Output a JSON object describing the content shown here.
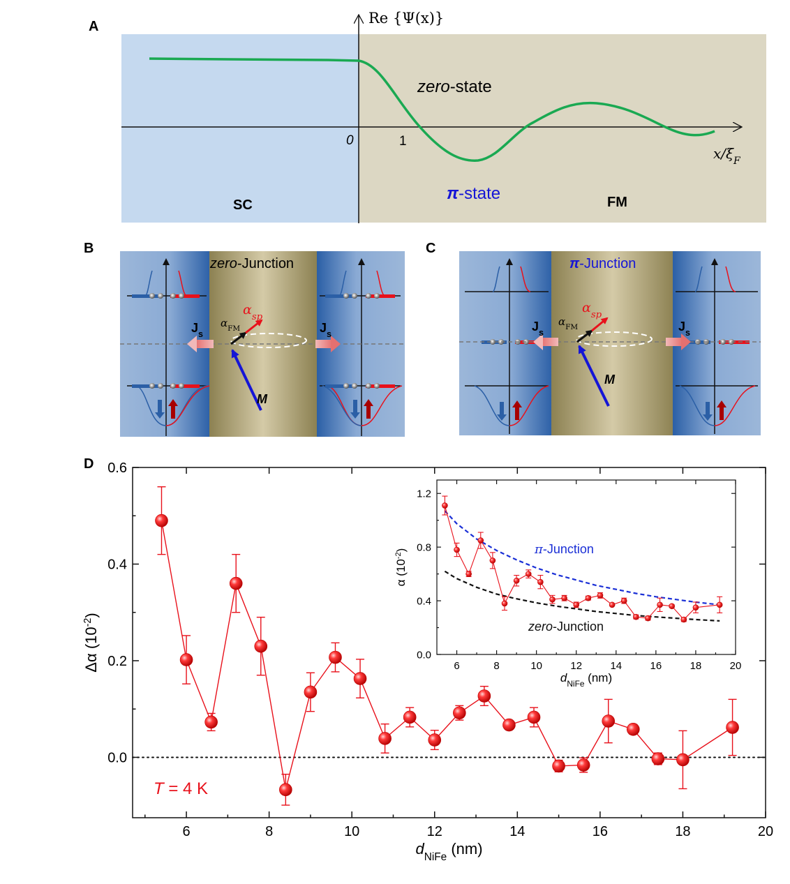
{
  "panels": {
    "A": {
      "letter": "A",
      "y_axis_label": "Re {Ψ(x)}",
      "x_axis_label": "x/ξ_F",
      "origin_label": "0",
      "one_label": "1",
      "zero_state": "zero-state",
      "pi_state": "π-state",
      "sc_label": "SC",
      "fm_label": "FM",
      "colors": {
        "sc": "#c5d9ef",
        "fm": "#dcd7c3",
        "curve": "#1aa952",
        "pi": "#1515d6"
      }
    },
    "B": {
      "letter": "B",
      "title": "zero-Junction",
      "alpha_sp": "αsp",
      "alpha_fm": "αFM",
      "js": "Js",
      "m": "M"
    },
    "C": {
      "letter": "C",
      "title": "π-Junction",
      "alpha_sp": "αsp",
      "alpha_fm": "αFM",
      "js": "Js",
      "m": "M"
    },
    "D": {
      "letter": "D",
      "annotation": "T = 4 K"
    }
  },
  "chart_data": [
    {
      "type": "scatter",
      "panel": "D-main",
      "xlabel": "dNiFe (nm)",
      "ylabel": "Δα (10-2)",
      "xlim": [
        4.7,
        20
      ],
      "ylim": [
        -0.125,
        0.6
      ],
      "xticks": [
        6,
        8,
        10,
        12,
        14,
        16,
        18,
        20
      ],
      "yticks": [
        0.0,
        0.2,
        0.4,
        0.6
      ],
      "tick_labels_x": [
        "6",
        "8",
        "10",
        "12",
        "14",
        "16",
        "18",
        "20"
      ],
      "tick_labels_y": [
        "0.0",
        "0.2",
        "0.4",
        "0.6"
      ],
      "series": [
        {
          "color": "#e8111b",
          "x": [
            5.4,
            6.0,
            6.6,
            7.2,
            7.8,
            8.4,
            9.0,
            9.6,
            10.2,
            10.8,
            11.4,
            12.0,
            12.6,
            13.2,
            13.8,
            14.4,
            15.0,
            15.6,
            16.2,
            16.8,
            17.4,
            18.0,
            19.2
          ],
          "y": [
            0.49,
            0.202,
            0.073,
            0.36,
            0.23,
            -0.067,
            0.135,
            0.207,
            0.163,
            0.039,
            0.083,
            0.036,
            0.092,
            0.127,
            0.067,
            0.083,
            -0.018,
            -0.016,
            0.075,
            0.058,
            -0.003,
            -0.005,
            0.062
          ],
          "err": [
            0.07,
            0.05,
            0.018,
            0.06,
            0.06,
            0.032,
            0.04,
            0.03,
            0.04,
            0.03,
            0.02,
            0.02,
            0.015,
            0.02,
            0.005,
            0.02,
            0.012,
            0.015,
            0.045,
            0.01,
            0.012,
            0.06,
            0.058
          ]
        }
      ],
      "reference_line": {
        "y": 0.0,
        "style": "dotted"
      }
    },
    {
      "type": "scatter",
      "panel": "D-inset",
      "xlabel": "dNiFe (nm)",
      "ylabel": "α (10-2)",
      "xlim": [
        5,
        20
      ],
      "ylim": [
        0,
        1.3
      ],
      "xticks": [
        6,
        8,
        10,
        12,
        14,
        16,
        18,
        20
      ],
      "yticks": [
        0.0,
        0.4,
        0.8,
        1.2
      ],
      "tick_labels_x": [
        "6",
        "8",
        "10",
        "12",
        "14",
        "16",
        "18",
        "20"
      ],
      "tick_labels_y": [
        "0.0",
        "0.4",
        "0.8",
        "1.2"
      ],
      "series": [
        {
          "color": "#e8111b",
          "x": [
            5.4,
            6.0,
            6.6,
            7.2,
            7.8,
            8.4,
            9.0,
            9.6,
            10.2,
            10.8,
            11.4,
            12.0,
            12.6,
            13.2,
            13.8,
            14.4,
            15.0,
            15.6,
            16.2,
            16.8,
            17.4,
            18.0,
            19.2
          ],
          "y": [
            1.11,
            0.78,
            0.6,
            0.85,
            0.7,
            0.38,
            0.55,
            0.6,
            0.54,
            0.41,
            0.42,
            0.37,
            0.42,
            0.44,
            0.37,
            0.4,
            0.28,
            0.27,
            0.37,
            0.36,
            0.26,
            0.35,
            0.37
          ],
          "err": [
            0.07,
            0.05,
            0.02,
            0.06,
            0.06,
            0.05,
            0.04,
            0.03,
            0.05,
            0.03,
            0.02,
            0.02,
            0.015,
            0.02,
            0.005,
            0.02,
            0.015,
            0.015,
            0.05,
            0.01,
            0.015,
            0.04,
            0.06
          ]
        }
      ],
      "curves": [
        {
          "name": "π-Junction",
          "color": "#1a2fd6",
          "style": "dashed",
          "x": [
            5.4,
            6,
            7,
            8,
            9,
            10,
            11,
            12,
            13,
            14,
            15,
            16,
            17,
            18,
            19.2
          ],
          "y": [
            1.07,
            0.975,
            0.86,
            0.775,
            0.705,
            0.645,
            0.595,
            0.555,
            0.515,
            0.485,
            0.455,
            0.43,
            0.41,
            0.39,
            0.37
          ]
        },
        {
          "name": "zero-Junction",
          "color": "#111111",
          "style": "dashed",
          "x": [
            5.4,
            6,
            7,
            8,
            9,
            10,
            11,
            12,
            13,
            14,
            15,
            16,
            17,
            18,
            19.2
          ],
          "y": [
            0.62,
            0.565,
            0.5,
            0.45,
            0.415,
            0.385,
            0.36,
            0.34,
            0.32,
            0.305,
            0.29,
            0.28,
            0.27,
            0.26,
            0.25
          ]
        }
      ]
    }
  ]
}
